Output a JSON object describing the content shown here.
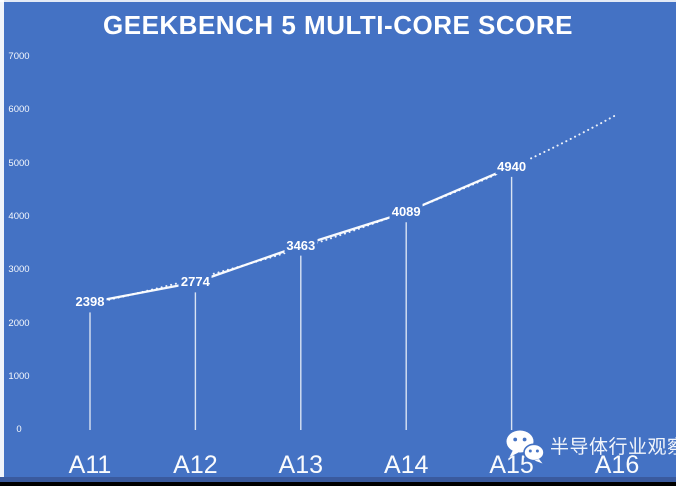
{
  "title": "GEEKBENCH 5 MULTI-CORE SCORE",
  "chart_data": {
    "type": "line",
    "title": "GEEKBENCH 5 MULTI-CORE SCORE",
    "categories": [
      "A11",
      "A12",
      "A13",
      "A14",
      "A15",
      "A16"
    ],
    "series": [
      {
        "name": "Geekbench 5 multi-core score",
        "values": [
          2398,
          2774,
          3463,
          4089,
          4940,
          null
        ],
        "style": "solid",
        "data_labels": [
          "2398",
          "2774",
          "3463",
          "4089",
          "4940"
        ]
      }
    ],
    "trendline": {
      "style": "dotted",
      "fit": "exponential",
      "extends_to": "A16",
      "approx_end_value": 5900
    },
    "ylim": [
      0,
      7000
    ],
    "ytick_step": 1000,
    "yticks": [
      "7000",
      "6000",
      "5000",
      "4000",
      "3000",
      "2000",
      "1000",
      "0"
    ],
    "grid": false,
    "legend": "none",
    "drop_lines": true,
    "xlabel": "",
    "ylabel": ""
  },
  "watermark": {
    "icon": "wechat-icon",
    "text": "半导体行业观察"
  },
  "colors": {
    "background": "#4472C4",
    "foreground": "#FFFFFF",
    "line": "#FFFFFF",
    "footer_band": "#3A5A9E",
    "footer_bar": "#000000"
  }
}
